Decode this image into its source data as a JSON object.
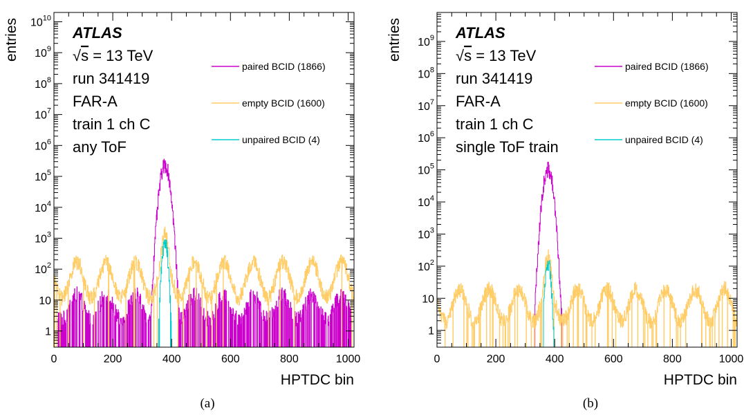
{
  "chart_data": [
    {
      "type": "histogram",
      "panel_label": "(a)",
      "xlabel": "HPTDC bin",
      "ylabel": "entries",
      "xlim": [
        0,
        1020
      ],
      "ylim": [
        0.3,
        20000000000
      ],
      "yscale": "log",
      "xticks": [
        0,
        200,
        400,
        600,
        800,
        1000
      ],
      "yticks": [
        {
          "value": 1,
          "label": "1"
        },
        {
          "value": 10,
          "label": "10"
        },
        {
          "value": 100,
          "label": "10",
          "exp": "2"
        },
        {
          "value": 1000,
          "label": "10",
          "exp": "3"
        },
        {
          "value": 10000,
          "label": "10",
          "exp": "4"
        },
        {
          "value": 100000,
          "label": "10",
          "exp": "5"
        },
        {
          "value": 1000000,
          "label": "10",
          "exp": "6"
        },
        {
          "value": 10000000,
          "label": "10",
          "exp": "7"
        },
        {
          "value": 100000000,
          "label": "10",
          "exp": "8"
        },
        {
          "value": 1000000000,
          "label": "10",
          "exp": "9"
        },
        {
          "value": 10000000000,
          "label": "10",
          "exp": "10"
        }
      ],
      "annotations": {
        "experiment": "ATLAS",
        "energy_prefix": "√",
        "energy_s": "s",
        "energy_value": " = 13 TeV",
        "run": "run 341419",
        "station": "FAR-A",
        "channel": "train 1 ch C",
        "selection": "any ToF"
      },
      "legend": "top-right",
      "series": [
        {
          "name": "paired BCID (1866)",
          "color": "#cc00cc",
          "profile": {
            "peak_center": 377,
            "peak_sigma": 10,
            "peak_height": 230000,
            "background_level": 6,
            "background_modulation": 0.8,
            "background_period": 100,
            "background_phase": 77,
            "zero_fraction": 0.45,
            "start": 10,
            "end": 1010
          }
        },
        {
          "name": "empty BCID (1600)",
          "color": "#ffcc66",
          "profile": {
            "peak_center": 377,
            "peak_sigma": 7,
            "peak_height": 1300,
            "background_level": 45,
            "background_modulation": 1.15,
            "background_period": 100,
            "background_phase": 77,
            "zero_fraction": 0.02,
            "start": 0,
            "end": 1020
          }
        },
        {
          "name": "unpaired BCID (4)",
          "color": "#00cccc",
          "profile": {
            "peak_center": 377,
            "peak_sigma": 6,
            "peak_height": 700,
            "background_level": 0.25,
            "background_modulation": 0.3,
            "background_period": 100,
            "background_phase": 77,
            "zero_fraction": 0.7,
            "start": 10,
            "end": 1010
          }
        }
      ]
    },
    {
      "type": "histogram",
      "panel_label": "(b)",
      "xlabel": "HPTDC bin",
      "ylabel": "entries",
      "xlim": [
        0,
        1020
      ],
      "ylim": [
        0.3,
        8000000000
      ],
      "yscale": "log",
      "xticks": [
        0,
        200,
        400,
        600,
        800,
        1000
      ],
      "yticks": [
        {
          "value": 1,
          "label": "1"
        },
        {
          "value": 10,
          "label": "10"
        },
        {
          "value": 100,
          "label": "10",
          "exp": "2"
        },
        {
          "value": 1000,
          "label": "10",
          "exp": "3"
        },
        {
          "value": 10000,
          "label": "10",
          "exp": "4"
        },
        {
          "value": 100000,
          "label": "10",
          "exp": "5"
        },
        {
          "value": 1000000,
          "label": "10",
          "exp": "6"
        },
        {
          "value": 10000000,
          "label": "10",
          "exp": "7"
        },
        {
          "value": 100000000,
          "label": "10",
          "exp": "8"
        },
        {
          "value": 1000000000,
          "label": "10",
          "exp": "9"
        }
      ],
      "annotations": {
        "experiment": "ATLAS",
        "energy_prefix": "√",
        "energy_s": "s",
        "energy_value": " = 13 TeV",
        "run": "run 341419",
        "station": "FAR-A",
        "channel": "train 1 ch C",
        "selection": "single ToF train"
      },
      "legend": "top-right",
      "series": [
        {
          "name": "paired BCID (1866)",
          "color": "#cc00cc",
          "profile": {
            "peak_center": 377,
            "peak_sigma": 10,
            "peak_height": 100000,
            "background_level": 0.3,
            "background_modulation": 0.2,
            "background_period": 100,
            "background_phase": 77,
            "zero_fraction": 0.8,
            "start": 320,
            "end": 440
          }
        },
        {
          "name": "empty BCID (1600)",
          "color": "#ffcc66",
          "profile": {
            "peak_center": 377,
            "peak_sigma": 7,
            "peak_height": 180,
            "background_level": 6,
            "background_modulation": 1.0,
            "background_period": 100,
            "background_phase": 77,
            "zero_fraction": 0.08,
            "start": 0,
            "end": 1020
          }
        },
        {
          "name": "unpaired BCID (4)",
          "color": "#00cccc",
          "profile": {
            "peak_center": 377,
            "peak_sigma": 6,
            "peak_height": 120,
            "background_level": 0.15,
            "background_modulation": 0.2,
            "background_period": 100,
            "background_phase": 77,
            "zero_fraction": 0.75,
            "start": 10,
            "end": 1010
          }
        }
      ]
    }
  ]
}
